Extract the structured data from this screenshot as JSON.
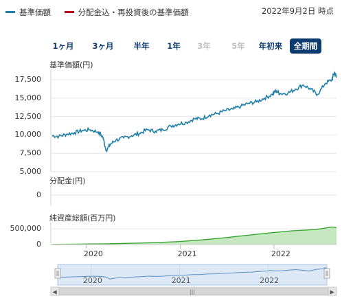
{
  "legend": {
    "nav_label": "基準価額",
    "nav_color": "#1f7fa8",
    "reinvest_label": "分配金込・再投資後の基準価額",
    "reinvest_color": "#b3121b"
  },
  "as_of": "2022年9月2日 時点",
  "periods": [
    {
      "label": "1ヶ月",
      "state": "enabled"
    },
    {
      "label": "3ヶ月",
      "state": "enabled"
    },
    {
      "label": "半年",
      "state": "enabled"
    },
    {
      "label": "1年",
      "state": "enabled"
    },
    {
      "label": "3年",
      "state": "disabled"
    },
    {
      "label": "5年",
      "state": "disabled"
    },
    {
      "label": "年初来",
      "state": "enabled"
    },
    {
      "label": "全期間",
      "state": "active"
    }
  ],
  "chart_data": [
    {
      "type": "line",
      "title": "基準価額(円)",
      "yticks": [
        "17,500",
        "15,000",
        "12,500",
        "10,000",
        "7,500",
        "5,000"
      ],
      "ytick_values": [
        17500,
        15000,
        12500,
        10000,
        7500,
        5000
      ],
      "ylim": [
        5000,
        19000
      ],
      "xlim": [
        "2019-08-15",
        "2022-09-02"
      ],
      "grid": true,
      "color": "#1f7fa8",
      "series": [
        {
          "name": "基準価額",
          "x": [
            "2019-08-20",
            "2019-09-15",
            "2019-10-15",
            "2019-11-15",
            "2019-12-15",
            "2020-01-15",
            "2020-02-15",
            "2020-03-05",
            "2020-03-18",
            "2020-04-05",
            "2020-04-25",
            "2020-05-25",
            "2020-06-25",
            "2020-07-25",
            "2020-08-25",
            "2020-09-25",
            "2020-10-25",
            "2020-11-25",
            "2020-12-25",
            "2021-01-25",
            "2021-02-25",
            "2021-03-25",
            "2021-04-25",
            "2021-05-25",
            "2021-06-25",
            "2021-07-25",
            "2021-08-25",
            "2021-09-25",
            "2021-10-25",
            "2021-11-25",
            "2021-12-25",
            "2022-01-10",
            "2022-01-25",
            "2022-02-25",
            "2022-03-25",
            "2022-04-25",
            "2022-05-25",
            "2022-06-20",
            "2022-07-20",
            "2022-08-15",
            "2022-08-25",
            "2022-09-02"
          ],
          "values": [
            9900,
            9800,
            10100,
            10300,
            10600,
            10700,
            10400,
            9700,
            7900,
            8800,
            9300,
            9600,
            9900,
            10200,
            10700,
            10500,
            10700,
            11200,
            11500,
            11700,
            12200,
            12200,
            12700,
            12900,
            13300,
            13500,
            13900,
            14300,
            14500,
            15000,
            15500,
            16000,
            15600,
            15700,
            16200,
            16800,
            16200,
            15500,
            17000,
            17500,
            18500,
            17800
          ]
        }
      ]
    },
    {
      "type": "bar",
      "title": "分配金(円)",
      "yticks": [
        "0"
      ],
      "ytick_values": [
        0
      ],
      "values": []
    },
    {
      "type": "area",
      "title": "純資産総額(百万円)",
      "yticks": [
        "500,000",
        "0"
      ],
      "ytick_values": [
        500000,
        0
      ],
      "ylim": [
        0,
        700000
      ],
      "color": "#3aa535",
      "fill": "#c6e8c0",
      "series": [
        {
          "name": "純資産総額",
          "x": [
            "2019-08-20",
            "2019-12-15",
            "2020-03-18",
            "2020-06-15",
            "2020-09-15",
            "2020-12-15",
            "2021-03-15",
            "2021-06-15",
            "2021-09-15",
            "2021-12-15",
            "2022-03-15",
            "2022-06-15",
            "2022-08-15",
            "2022-09-02"
          ],
          "values": [
            5000,
            15000,
            22000,
            40000,
            60000,
            90000,
            140000,
            210000,
            290000,
            370000,
            440000,
            480000,
            560000,
            540000
          ]
        }
      ]
    }
  ],
  "xaxis": {
    "ticks": [
      {
        "label": "2020",
        "date": "2020-01-01"
      },
      {
        "label": "2021",
        "date": "2021-01-01"
      },
      {
        "label": "2022",
        "date": "2022-01-01"
      }
    ]
  },
  "navigator": {
    "ticks": [
      {
        "label": "2020",
        "date": "2020-01-01"
      },
      {
        "label": "2021",
        "date": "2021-01-01"
      },
      {
        "label": "2022",
        "date": "2022-01-01"
      }
    ],
    "scroll_left": "◀",
    "scroll_right": "▶",
    "grip": "|||"
  }
}
